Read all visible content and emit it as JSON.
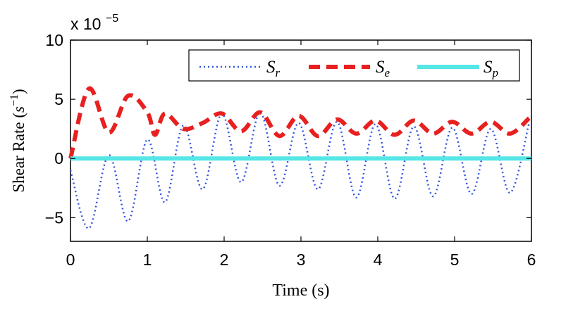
{
  "chart_data": {
    "type": "line",
    "title": "",
    "xlabel": "Time (s)",
    "ylabel_text": "Shear Rate (",
    "ylabel_unit_base": "s",
    "ylabel_unit_exp": "−1",
    "ylabel_close": ")",
    "y_scale_prefix": "x 10",
    "y_scale_exponent": "−5",
    "xlim": [
      0,
      6
    ],
    "ylim": [
      -7,
      10
    ],
    "x_ticks": [
      0,
      1,
      2,
      3,
      4,
      5,
      6
    ],
    "x_tick_labels": [
      "0",
      "1",
      "2",
      "3",
      "4",
      "5",
      "6"
    ],
    "y_ticks": [
      -5,
      0,
      5,
      10
    ],
    "y_tick_labels": [
      "−5",
      "0",
      "5",
      "10"
    ],
    "grid": false,
    "legend_position": "top-right",
    "series": [
      {
        "name": "S_r",
        "label_base": "S",
        "label_sub": "r",
        "color": "#3355dd",
        "style": "dotted",
        "x": [
          0,
          0.24,
          0.5,
          0.75,
          1.0,
          1.23,
          1.47,
          1.72,
          1.97,
          2.22,
          2.47,
          2.72,
          2.97,
          3.22,
          3.47,
          3.72,
          3.97,
          4.22,
          4.47,
          4.72,
          4.97,
          5.22,
          5.47,
          5.72,
          5.97
        ],
        "values": [
          -1.0,
          -5.9,
          0.3,
          -5.3,
          1.6,
          -3.7,
          2.8,
          -2.6,
          3.8,
          -2.0,
          3.9,
          -2.3,
          3.0,
          -2.6,
          3.1,
          -3.3,
          2.9,
          -3.4,
          2.7,
          -3.2,
          2.6,
          -3.0,
          2.5,
          -2.9,
          3.0
        ]
      },
      {
        "name": "S_e",
        "label_base": "S",
        "label_sub": "e",
        "color": "#e82020",
        "style": "dashed",
        "x": [
          0,
          0.24,
          0.5,
          0.75,
          1.0,
          1.1,
          1.23,
          1.47,
          1.72,
          1.97,
          2.22,
          2.47,
          2.72,
          2.97,
          3.22,
          3.47,
          3.72,
          3.97,
          4.22,
          4.47,
          4.72,
          4.97,
          5.22,
          5.47,
          5.72,
          5.97
        ],
        "values": [
          0.0,
          5.9,
          2.2,
          5.3,
          3.9,
          2.0,
          3.8,
          2.5,
          3.0,
          3.8,
          2.3,
          3.9,
          1.9,
          3.6,
          1.9,
          3.3,
          2.1,
          3.2,
          2.0,
          3.2,
          2.1,
          3.1,
          2.1,
          3.1,
          2.1,
          3.4
        ]
      },
      {
        "name": "S_p",
        "label_base": "S",
        "label_sub": "p",
        "color": "#55e6e6",
        "style": "solid",
        "x": [
          0,
          6
        ],
        "values": [
          0,
          0
        ]
      }
    ]
  }
}
